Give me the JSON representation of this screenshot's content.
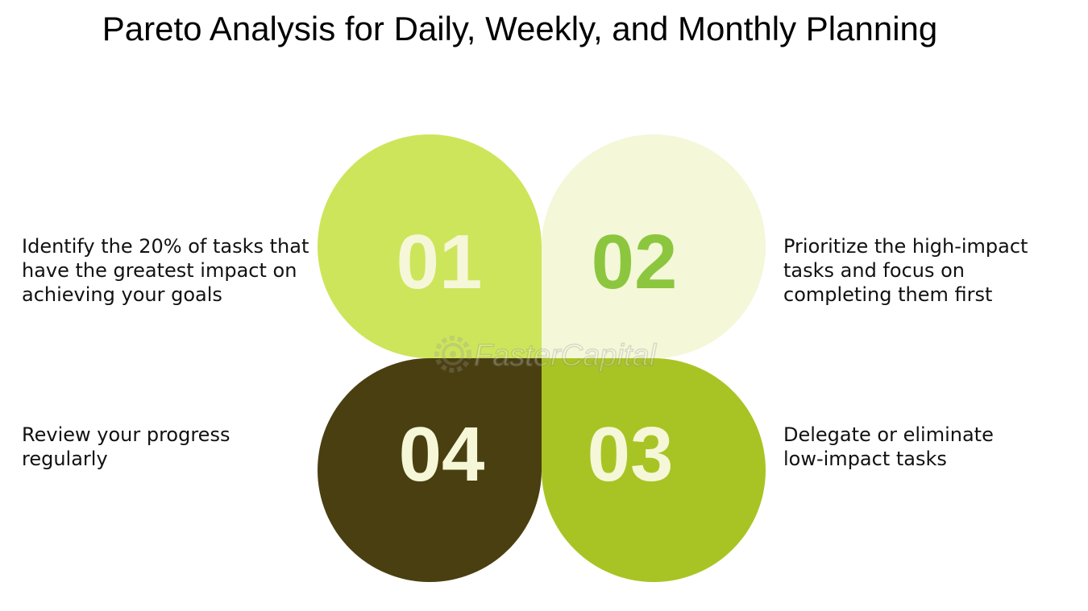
{
  "title": "Pareto Analysis for Daily, Weekly, and Monthly Planning",
  "steps": [
    {
      "number": "01",
      "lines": [
        "Identify the 20% of tasks that",
        "have the greatest impact on",
        "achieving your goals"
      ],
      "petal_color": "#cde55a",
      "number_color": "#f5f7d8"
    },
    {
      "number": "02",
      "lines": [
        "Prioritize the high-impact",
        "tasks and focus on",
        "completing them first"
      ],
      "petal_color": "#f4f7d8",
      "number_color": "#8cc63e"
    },
    {
      "number": "03",
      "lines": [
        "Delegate or eliminate",
        "low-impact tasks"
      ],
      "petal_color": "#a8c424",
      "number_color": "#f5f7d8"
    },
    {
      "number": "04",
      "lines": [
        "Review your progress",
        "regularly"
      ],
      "petal_color": "#4a3f10",
      "number_color": "#f5f7d8"
    }
  ],
  "watermark": {
    "text": "FasterCapital",
    "icon": "gear-icon"
  }
}
